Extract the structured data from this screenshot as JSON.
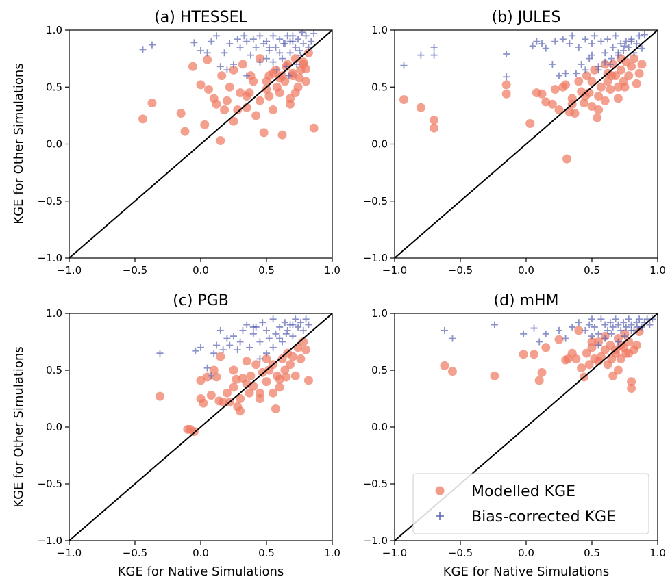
{
  "colors": {
    "modelled": "#f07860",
    "bias_corrected": "#5a64b4",
    "diagonal": "#000000",
    "legend_border": "#cccccc"
  },
  "legend": {
    "placement": "lower-right of panel (d)",
    "modelled_label": "Modelled KGE",
    "bias_corrected_label": "Bias-corrected KGE"
  },
  "chart_data": [
    {
      "type": "scatter",
      "title": "(a) HTESSEL",
      "xlabel": "",
      "ylabel": "KGE for Other Simulations",
      "xlim": [
        -1.0,
        1.0
      ],
      "ylim": [
        -1.0,
        1.0
      ],
      "xticks": [
        "−1.0",
        "−0.5",
        "0.0",
        "0.5",
        "1.0"
      ],
      "yticks": [
        "−1.0",
        "−0.5",
        "0.0",
        "0.5",
        "1.0"
      ],
      "diagonal": [
        [
          -1.0,
          -1.0
        ],
        [
          1.0,
          1.0
        ]
      ],
      "series": [
        {
          "name": "Modelled KGE",
          "marker": "circle",
          "x": [
            -0.44,
            -0.37,
            -0.15,
            -0.12,
            -0.06,
            0.0,
            0.03,
            0.05,
            0.06,
            0.1,
            0.12,
            0.15,
            0.16,
            0.18,
            0.2,
            0.22,
            0.25,
            0.28,
            0.3,
            0.32,
            0.35,
            0.37,
            0.38,
            0.4,
            0.42,
            0.45,
            0.48,
            0.5,
            0.52,
            0.55,
            0.57,
            0.6,
            0.62,
            0.64,
            0.66,
            0.68,
            0.7,
            0.72,
            0.74,
            0.76,
            0.78,
            0.8,
            0.82,
            0.86,
            0.5,
            0.55,
            0.6,
            0.65,
            0.7,
            0.75,
            0.8,
            0.58,
            0.45,
            0.35,
            0.25,
            0.62,
            0.72,
            0.78,
            0.68,
            0.52
          ],
          "y": [
            0.22,
            0.36,
            0.27,
            0.11,
            0.68,
            0.52,
            0.17,
            0.74,
            0.48,
            0.4,
            0.35,
            0.03,
            0.6,
            0.3,
            0.38,
            0.5,
            0.65,
            0.3,
            0.45,
            0.7,
            0.32,
            0.45,
            0.6,
            0.55,
            0.25,
            0.75,
            0.1,
            0.55,
            0.42,
            0.3,
            0.65,
            0.45,
            0.08,
            0.55,
            0.7,
            0.4,
            0.6,
            0.75,
            0.5,
            0.65,
            0.72,
            0.55,
            0.8,
            0.14,
            0.48,
            0.62,
            0.58,
            0.68,
            0.62,
            0.58,
            0.66,
            0.5,
            0.38,
            0.42,
            0.2,
            0.6,
            0.45,
            0.7,
            0.35,
            0.6
          ]
        },
        {
          "name": "Bias-corrected KGE",
          "marker": "plus",
          "x": [
            -0.44,
            -0.37,
            -0.05,
            0.0,
            0.05,
            0.08,
            0.12,
            0.15,
            0.18,
            0.2,
            0.22,
            0.25,
            0.28,
            0.3,
            0.33,
            0.35,
            0.38,
            0.4,
            0.42,
            0.45,
            0.48,
            0.5,
            0.52,
            0.55,
            0.57,
            0.6,
            0.62,
            0.64,
            0.66,
            0.68,
            0.7,
            0.72,
            0.74,
            0.76,
            0.78,
            0.8,
            0.82,
            0.84,
            0.86,
            0.55,
            0.6,
            0.65,
            0.7,
            0.75,
            0.5,
            0.58,
            0.63,
            0.68,
            0.73,
            0.45,
            0.35,
            0.52,
            0.77,
            0.67
          ],
          "y": [
            0.83,
            0.87,
            0.89,
            0.82,
            0.8,
            0.9,
            0.95,
            0.68,
            0.8,
            0.65,
            0.88,
            0.7,
            0.92,
            0.85,
            0.95,
            0.9,
            0.78,
            0.92,
            0.85,
            0.95,
            0.88,
            0.9,
            0.82,
            0.95,
            0.85,
            0.92,
            0.75,
            0.88,
            0.95,
            0.8,
            0.9,
            0.85,
            0.92,
            0.78,
            0.88,
            0.95,
            0.85,
            0.9,
            0.97,
            0.72,
            0.8,
            0.68,
            0.95,
            0.82,
            0.75,
            0.65,
            0.88,
            0.9,
            0.7,
            0.72,
            0.6,
            0.85,
            0.98,
            0.6
          ]
        }
      ]
    },
    {
      "type": "scatter",
      "title": "(b) JULES",
      "xlabel": "",
      "ylabel": "",
      "xlim": [
        -1.0,
        1.0
      ],
      "ylim": [
        -1.0,
        1.0
      ],
      "xticks": [
        "−1.0",
        "−0.5",
        "0.0",
        "0.5",
        "1.0"
      ],
      "yticks": [
        "−1.0",
        "−0.5",
        "0.0",
        "0.5",
        "1.0"
      ],
      "diagonal": [
        [
          -1.0,
          -1.0
        ],
        [
          1.0,
          1.0
        ]
      ],
      "series": [
        {
          "name": "Modelled KGE",
          "marker": "circle",
          "x": [
            -0.93,
            -0.8,
            -0.7,
            -0.7,
            -0.15,
            -0.15,
            0.03,
            0.08,
            0.12,
            0.15,
            0.2,
            0.22,
            0.25,
            0.28,
            0.3,
            0.31,
            0.33,
            0.35,
            0.37,
            0.4,
            0.42,
            0.44,
            0.46,
            0.48,
            0.5,
            0.52,
            0.54,
            0.55,
            0.57,
            0.6,
            0.62,
            0.64,
            0.66,
            0.68,
            0.7,
            0.72,
            0.74,
            0.76,
            0.78,
            0.8,
            0.82,
            0.84,
            0.86,
            0.88,
            0.55,
            0.6,
            0.65,
            0.7,
            0.75,
            0.45,
            0.35,
            0.5,
            0.62,
            0.72
          ],
          "y": [
            0.39,
            0.32,
            0.21,
            0.14,
            0.52,
            0.44,
            0.18,
            0.45,
            0.44,
            0.37,
            0.35,
            0.48,
            0.3,
            0.5,
            0.52,
            -0.13,
            0.28,
            0.4,
            0.27,
            0.55,
            0.46,
            0.36,
            0.6,
            0.45,
            0.33,
            0.65,
            0.23,
            0.42,
            0.5,
            0.38,
            0.55,
            0.48,
            0.7,
            0.6,
            0.5,
            0.65,
            0.55,
            0.72,
            0.6,
            0.68,
            0.75,
            0.53,
            0.62,
            0.7,
            0.3,
            0.7,
            0.6,
            0.4,
            0.5,
            0.42,
            0.35,
            0.55,
            0.62,
            0.75
          ]
        },
        {
          "name": "Bias-corrected KGE",
          "marker": "plus",
          "x": [
            -0.93,
            -0.8,
            -0.7,
            -0.7,
            -0.15,
            -0.15,
            0.05,
            0.08,
            0.12,
            0.15,
            0.2,
            0.22,
            0.25,
            0.28,
            0.3,
            0.33,
            0.35,
            0.38,
            0.4,
            0.42,
            0.45,
            0.48,
            0.5,
            0.52,
            0.55,
            0.57,
            0.6,
            0.62,
            0.64,
            0.66,
            0.68,
            0.7,
            0.72,
            0.74,
            0.76,
            0.78,
            0.8,
            0.82,
            0.84,
            0.86,
            0.88,
            0.9,
            0.6,
            0.65,
            0.7,
            0.75,
            0.8,
            0.55,
            0.5,
            0.45
          ],
          "y": [
            0.69,
            0.78,
            0.78,
            0.85,
            0.79,
            0.59,
            0.86,
            0.9,
            0.88,
            0.84,
            0.7,
            0.9,
            0.6,
            0.92,
            0.62,
            0.88,
            0.95,
            0.62,
            0.85,
            0.7,
            0.92,
            0.75,
            0.88,
            0.95,
            0.65,
            0.9,
            0.8,
            0.92,
            0.7,
            0.85,
            0.95,
            0.78,
            0.88,
            0.82,
            0.9,
            0.85,
            0.92,
            0.8,
            0.88,
            0.95,
            0.84,
            0.96,
            0.72,
            0.75,
            0.8,
            0.86,
            0.9,
            0.68,
            0.78,
            0.65
          ]
        }
      ]
    },
    {
      "type": "scatter",
      "title": "(c) PGB",
      "xlabel": "KGE for Native Simulations",
      "ylabel": "KGE for Other Simulations",
      "xlim": [
        -1.0,
        1.0
      ],
      "ylim": [
        -1.0,
        1.0
      ],
      "xticks": [
        "−1.0",
        "−0.5",
        "0.0",
        "0.5",
        "1.0"
      ],
      "yticks": [
        "−1.0",
        "−0.5",
        "0.0",
        "0.5",
        "1.0"
      ],
      "diagonal": [
        [
          -1.0,
          -1.0
        ],
        [
          1.0,
          1.0
        ]
      ],
      "series": [
        {
          "name": "Modelled KGE",
          "marker": "circle",
          "x": [
            -0.31,
            -0.1,
            -0.08,
            -0.05,
            0.0,
            0.0,
            0.02,
            0.05,
            0.08,
            0.1,
            0.12,
            0.14,
            0.15,
            0.17,
            0.2,
            0.22,
            0.25,
            0.27,
            0.28,
            0.3,
            0.3,
            0.32,
            0.35,
            0.37,
            0.38,
            0.4,
            0.42,
            0.45,
            0.47,
            0.5,
            0.52,
            0.55,
            0.57,
            0.58,
            0.6,
            0.62,
            0.64,
            0.66,
            0.68,
            0.7,
            0.72,
            0.74,
            0.76,
            0.78,
            0.8,
            0.82,
            0.6,
            0.5,
            0.45,
            0.35,
            0.25,
            0.65,
            0.55
          ],
          "y": [
            0.27,
            -0.02,
            -0.02,
            -0.04,
            0.41,
            0.25,
            0.21,
            0.44,
            0.28,
            0.5,
            0.44,
            0.23,
            0.62,
            0.22,
            0.3,
            0.22,
            0.35,
            0.42,
            0.18,
            0.14,
            0.25,
            0.43,
            0.38,
            0.3,
            0.45,
            0.36,
            0.55,
            0.3,
            0.48,
            0.4,
            0.5,
            0.3,
            0.16,
            0.45,
            0.42,
            0.6,
            0.5,
            0.65,
            0.55,
            0.62,
            0.45,
            0.7,
            0.6,
            0.75,
            0.68,
            0.41,
            0.35,
            0.6,
            0.25,
            0.58,
            0.5,
            0.44,
            0.55
          ]
        },
        {
          "name": "Bias-corrected KGE",
          "marker": "plus",
          "x": [
            -0.31,
            -0.04,
            0.0,
            0.05,
            0.08,
            0.1,
            0.12,
            0.15,
            0.17,
            0.2,
            0.22,
            0.25,
            0.28,
            0.3,
            0.32,
            0.35,
            0.37,
            0.4,
            0.42,
            0.45,
            0.47,
            0.5,
            0.52,
            0.55,
            0.57,
            0.6,
            0.62,
            0.64,
            0.66,
            0.68,
            0.7,
            0.72,
            0.74,
            0.76,
            0.78,
            0.8,
            0.82,
            0.5,
            0.55,
            0.6,
            0.45,
            0.4,
            0.65,
            0.7
          ],
          "y": [
            0.65,
            0.67,
            0.7,
            0.52,
            0.45,
            0.65,
            0.72,
            0.85,
            0.68,
            0.78,
            0.72,
            0.8,
            0.68,
            0.75,
            0.85,
            0.9,
            0.7,
            0.82,
            0.88,
            0.75,
            0.92,
            0.85,
            0.78,
            0.95,
            0.82,
            0.88,
            0.75,
            0.92,
            0.85,
            0.9,
            0.8,
            0.95,
            0.88,
            0.92,
            0.85,
            0.95,
            0.9,
            0.65,
            0.7,
            0.78,
            0.6,
            0.88,
            0.82,
            0.9
          ]
        }
      ]
    },
    {
      "type": "scatter",
      "title": "(d) mHM",
      "xlabel": "KGE for Native Simulations",
      "ylabel": "",
      "xlim": [
        -1.0,
        1.0
      ],
      "ylim": [
        -1.0,
        1.0
      ],
      "xticks": [
        "−1.0",
        "−0.5",
        "0.0",
        "0.5",
        "1.0"
      ],
      "yticks": [
        "−1.0",
        "−0.5",
        "0.0",
        "0.5",
        "1.0"
      ],
      "diagonal": [
        [
          -1.0,
          -1.0
        ],
        [
          1.0,
          1.0
        ]
      ],
      "series": [
        {
          "name": "Modelled KGE",
          "marker": "circle",
          "x": [
            -0.62,
            -0.56,
            -0.24,
            -0.02,
            0.06,
            0.1,
            0.12,
            0.15,
            0.25,
            0.3,
            0.32,
            0.35,
            0.38,
            0.4,
            0.42,
            0.44,
            0.46,
            0.48,
            0.5,
            0.52,
            0.55,
            0.57,
            0.6,
            0.62,
            0.64,
            0.66,
            0.68,
            0.7,
            0.72,
            0.74,
            0.76,
            0.78,
            0.8,
            0.82,
            0.84,
            0.86,
            0.7,
            0.75,
            0.8,
            0.65,
            0.6,
            0.55,
            0.5,
            0.72,
            0.78,
            0.68
          ],
          "y": [
            0.54,
            0.49,
            0.45,
            0.64,
            0.64,
            0.41,
            0.48,
            0.7,
            0.77,
            0.59,
            0.6,
            0.65,
            0.6,
            0.85,
            0.52,
            0.44,
            0.65,
            0.55,
            0.7,
            0.6,
            0.75,
            0.62,
            0.68,
            0.55,
            0.72,
            0.45,
            0.65,
            0.78,
            0.6,
            0.7,
            0.65,
            0.75,
            0.34,
            0.68,
            0.72,
            0.84,
            0.5,
            0.82,
            0.4,
            0.6,
            0.8,
            0.58,
            0.75,
            0.72,
            0.65,
            0.68
          ]
        },
        {
          "name": "Bias-corrected KGE",
          "marker": "plus",
          "x": [
            -0.62,
            -0.56,
            -0.24,
            -0.02,
            0.06,
            0.1,
            0.15,
            0.25,
            0.3,
            0.35,
            0.4,
            0.45,
            0.48,
            0.5,
            0.52,
            0.55,
            0.57,
            0.6,
            0.62,
            0.64,
            0.66,
            0.68,
            0.7,
            0.72,
            0.74,
            0.76,
            0.78,
            0.8,
            0.82,
            0.84,
            0.86,
            0.88,
            0.9,
            0.92,
            0.94,
            0.96,
            0.6,
            0.65,
            0.7,
            0.75,
            0.8,
            0.85,
            0.55,
            0.5
          ],
          "y": [
            0.85,
            0.78,
            0.9,
            0.82,
            0.87,
            0.75,
            0.82,
            0.85,
            0.78,
            0.88,
            0.92,
            0.85,
            0.9,
            0.95,
            0.88,
            0.82,
            0.95,
            0.9,
            0.85,
            0.92,
            0.88,
            0.95,
            0.9,
            0.85,
            0.92,
            0.88,
            0.95,
            0.9,
            0.85,
            0.92,
            0.95,
            0.88,
            0.92,
            0.95,
            0.9,
            0.95,
            0.78,
            0.82,
            0.75,
            0.8,
            0.85,
            0.88,
            0.72,
            0.8
          ]
        }
      ]
    }
  ]
}
